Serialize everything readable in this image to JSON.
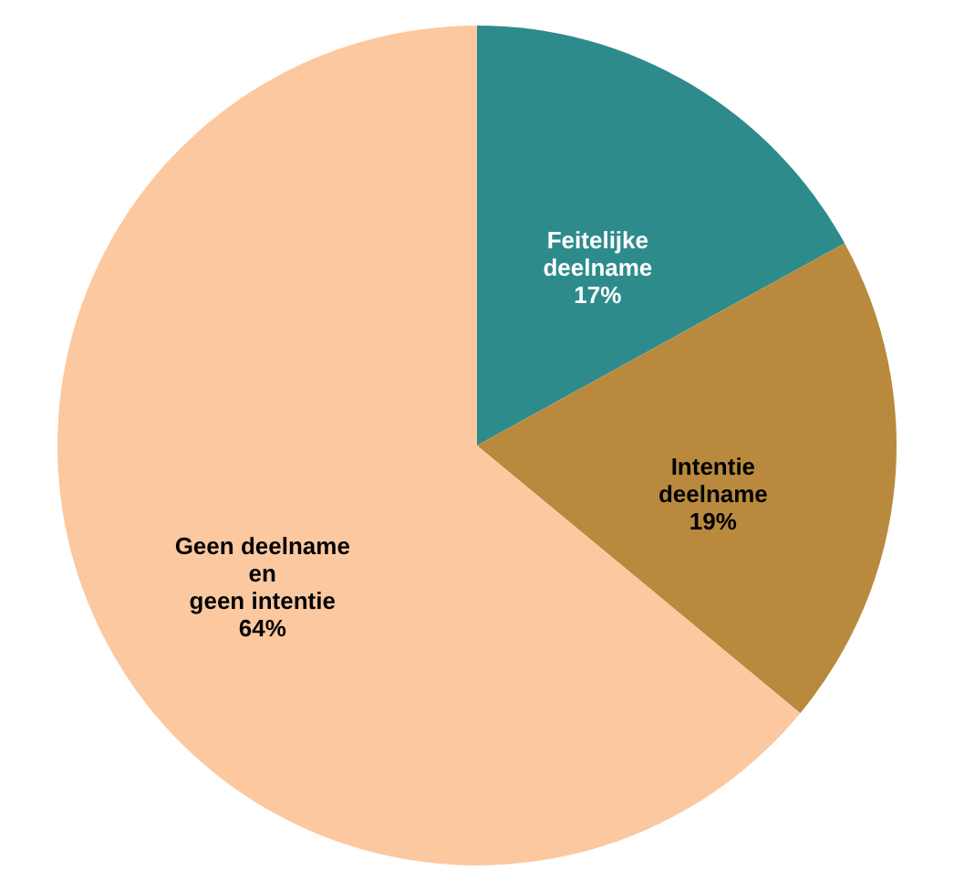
{
  "chart_data": {
    "type": "pie",
    "categories": [
      "Feitelijke\ndeelname",
      "Intentie\ndeelname",
      "Geen deelname\nen\ngeen intentie"
    ],
    "values": [
      17,
      19,
      64
    ],
    "colors": [
      "#2e8b8b",
      "#b98a3e",
      "#fcc8a0"
    ],
    "value_labels": [
      "17%",
      "19%",
      "64%"
    ]
  }
}
